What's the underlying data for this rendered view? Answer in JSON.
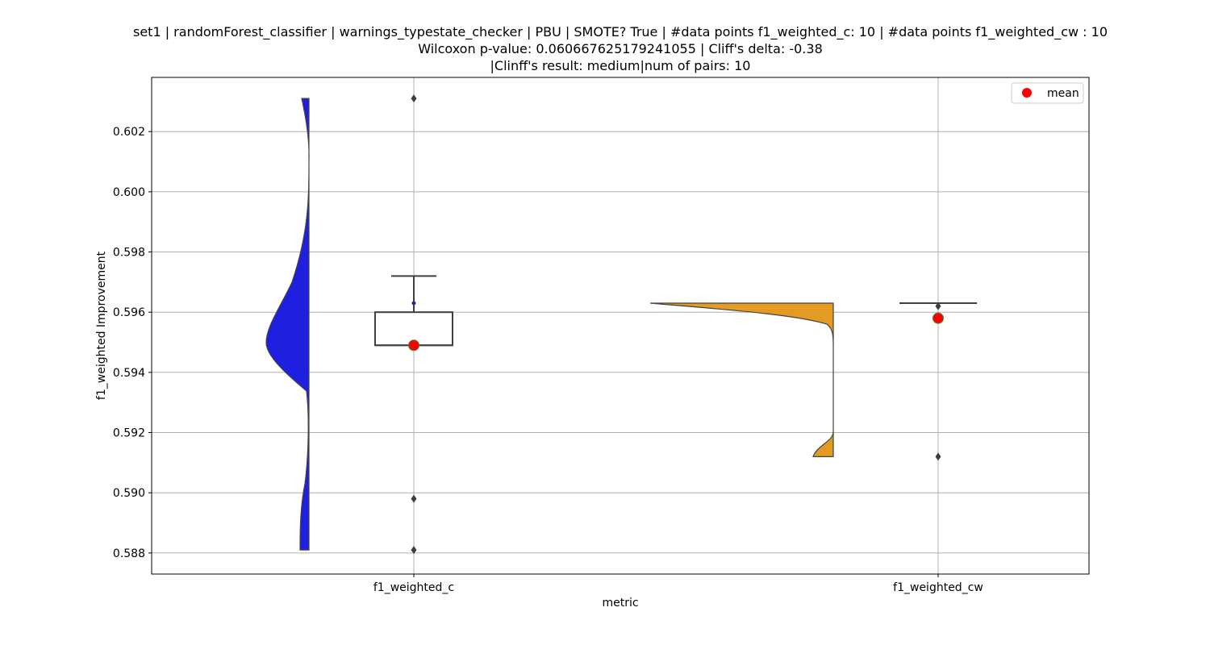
{
  "chart_data": {
    "type": "violin+box",
    "title_lines": [
      "set1 | randomForest_classifier | warnings_typestate_checker | PBU | SMOTE? True | #data points f1_weighted_c: 10 | #data points f1_weighted_cw : 10",
      "Wilcoxon p-value: 0.060667625179241055 | Cliff's delta: -0.38",
      "|Clinff's result: medium|num of pairs: 10"
    ],
    "xlabel": "metric",
    "ylabel": "f1_weighted Improvement",
    "categories": [
      "f1_weighted_c",
      "f1_weighted_cw"
    ],
    "ylim": [
      0.5873,
      0.6038
    ],
    "yticks": [
      0.588,
      0.59,
      0.592,
      0.594,
      0.596,
      0.598,
      0.6,
      0.602
    ],
    "ytick_labels": [
      "0.588",
      "0.590",
      "0.592",
      "0.594",
      "0.596",
      "0.598",
      "0.600",
      "0.602"
    ],
    "grid": true,
    "legend": {
      "position": "top-right",
      "entries": [
        {
          "label": "mean",
          "color": "#ff0000"
        }
      ]
    },
    "series": [
      {
        "category": "f1_weighted_c",
        "violin_color": "#1f1fe0",
        "violin_range": [
          0.5881,
          0.6031
        ],
        "box": {
          "q1": 0.5949,
          "median": 0.5949,
          "q3": 0.596,
          "whisker_low": 0.5949,
          "whisker_high": 0.5972
        },
        "outliers": [
          0.6031,
          0.5898,
          0.5881
        ],
        "inner_points": [
          0.5963
        ],
        "mean": 0.5949
      },
      {
        "category": "f1_weighted_cw",
        "violin_color": "#e39b22",
        "violin_range": [
          0.5912,
          0.5963
        ],
        "box": {
          "q1": 0.5963,
          "median": 0.5963,
          "q3": 0.5963,
          "whisker_low": 0.5963,
          "whisker_high": 0.5963
        },
        "outliers": [
          0.5962,
          0.5912
        ],
        "inner_points": [],
        "mean": 0.5958
      }
    ]
  }
}
